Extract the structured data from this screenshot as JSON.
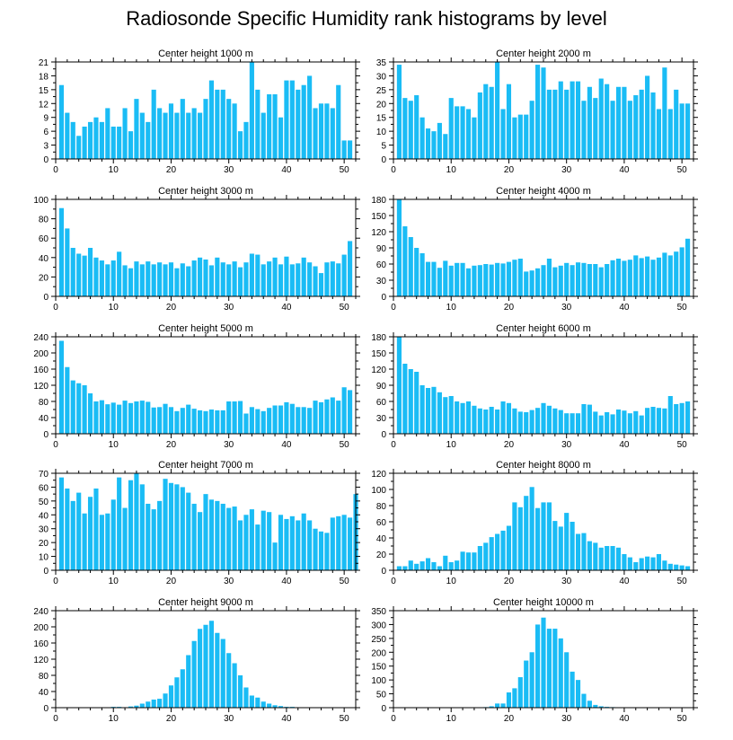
{
  "figure": {
    "title": "Radiosonde Specific Humidity rank histograms by level",
    "bar_color": "#1abcf5",
    "axis_color": "#000000"
  },
  "chart_data": [
    {
      "type": "bar",
      "title": "Center height 1000 m",
      "xlim": [
        0,
        52
      ],
      "xticks": [
        0,
        10,
        20,
        30,
        40,
        50
      ],
      "ylim": [
        0,
        21
      ],
      "yticks": [
        0,
        3,
        6,
        9,
        12,
        15,
        18,
        21
      ],
      "values": [
        16,
        10,
        8,
        5,
        7,
        8,
        9,
        8,
        11,
        7,
        7,
        11,
        6,
        13,
        10,
        8,
        15,
        11,
        10,
        12,
        10,
        13,
        10,
        11,
        10,
        13,
        17,
        15,
        15,
        13,
        12,
        6,
        8,
        21,
        15,
        10,
        14,
        14,
        9,
        17,
        17,
        15,
        16,
        18,
        11,
        12,
        12,
        11,
        16,
        4,
        4
      ]
    },
    {
      "type": "bar",
      "title": "Center height 2000 m",
      "xlim": [
        0,
        52
      ],
      "xticks": [
        0,
        10,
        20,
        30,
        40,
        50
      ],
      "ylim": [
        0,
        35
      ],
      "yticks": [
        0,
        5,
        10,
        15,
        20,
        25,
        30,
        35
      ],
      "values": [
        34,
        22,
        21,
        23,
        15,
        11,
        10,
        13,
        9,
        22,
        19,
        19,
        18,
        15,
        24,
        27,
        26,
        35,
        18,
        27,
        15,
        16,
        16,
        21,
        34,
        33,
        25,
        25,
        28,
        25,
        28,
        28,
        21,
        26,
        22,
        29,
        27,
        21,
        26,
        26,
        21,
        23,
        25,
        30,
        24,
        18,
        33,
        18,
        25,
        20,
        20
      ]
    },
    {
      "type": "bar",
      "title": "Center height 3000 m",
      "xlim": [
        0,
        52
      ],
      "xticks": [
        0,
        10,
        20,
        30,
        40,
        50
      ],
      "ylim": [
        0,
        100
      ],
      "yticks": [
        0,
        20,
        40,
        60,
        80,
        100
      ],
      "values": [
        91,
        70,
        50,
        44,
        42,
        50,
        40,
        37,
        33,
        37,
        46,
        32,
        29,
        36,
        33,
        36,
        33,
        35,
        33,
        35,
        29,
        34,
        31,
        37,
        40,
        38,
        32,
        40,
        35,
        33,
        36,
        30,
        35,
        44,
        43,
        33,
        36,
        40,
        33,
        41,
        33,
        34,
        40,
        35,
        31,
        24,
        35,
        36,
        34,
        43,
        57
      ]
    },
    {
      "type": "bar",
      "title": "Center height 4000 m",
      "xlim": [
        0,
        52
      ],
      "xticks": [
        0,
        10,
        20,
        30,
        40,
        50
      ],
      "ylim": [
        0,
        180
      ],
      "yticks": [
        0,
        30,
        60,
        90,
        120,
        150,
        180
      ],
      "values": [
        180,
        130,
        110,
        90,
        80,
        64,
        64,
        53,
        66,
        57,
        62,
        62,
        52,
        57,
        58,
        60,
        59,
        62,
        61,
        64,
        68,
        70,
        46,
        48,
        52,
        58,
        70,
        54,
        57,
        62,
        58,
        63,
        62,
        60,
        60,
        54,
        60,
        67,
        70,
        66,
        68,
        76,
        71,
        74,
        68,
        72,
        81,
        76,
        83,
        91,
        107
      ]
    },
    {
      "type": "bar",
      "title": "Center height 5000 m",
      "xlim": [
        0,
        52
      ],
      "xticks": [
        0,
        10,
        20,
        30,
        40,
        50
      ],
      "ylim": [
        0,
        240
      ],
      "yticks": [
        0,
        40,
        80,
        120,
        160,
        200,
        240
      ],
      "values": [
        230,
        165,
        132,
        125,
        120,
        100,
        80,
        83,
        73,
        77,
        72,
        82,
        76,
        80,
        82,
        79,
        65,
        66,
        74,
        66,
        56,
        64,
        72,
        62,
        58,
        56,
        60,
        58,
        58,
        80,
        80,
        81,
        50,
        66,
        61,
        56,
        64,
        70,
        70,
        78,
        74,
        66,
        66,
        64,
        82,
        78,
        85,
        90,
        82,
        115,
        108
      ]
    },
    {
      "type": "bar",
      "title": "Center height 6000 m",
      "xlim": [
        0,
        52
      ],
      "xticks": [
        0,
        10,
        20,
        30,
        40,
        50
      ],
      "ylim": [
        0,
        180
      ],
      "yticks": [
        0,
        30,
        60,
        90,
        120,
        150,
        180
      ],
      "values": [
        180,
        130,
        120,
        115,
        90,
        85,
        87,
        77,
        68,
        70,
        60,
        57,
        60,
        52,
        47,
        45,
        50,
        45,
        60,
        57,
        47,
        41,
        40,
        44,
        48,
        57,
        52,
        47,
        44,
        38,
        38,
        38,
        55,
        54,
        41,
        34,
        40,
        36,
        45,
        43,
        38,
        42,
        34,
        48,
        50,
        48,
        47,
        70,
        55,
        57,
        60
      ]
    },
    {
      "type": "bar",
      "title": "Center height 7000 m",
      "xlim": [
        0,
        52
      ],
      "xticks": [
        0,
        10,
        20,
        30,
        40,
        50
      ],
      "ylim": [
        0,
        70
      ],
      "yticks": [
        0,
        10,
        20,
        30,
        40,
        50,
        60,
        70
      ],
      "values": [
        67,
        59,
        50,
        56,
        41,
        53,
        59,
        40,
        41,
        51,
        67,
        45,
        65,
        70,
        62,
        48,
        44,
        50,
        66,
        63,
        62,
        60,
        56,
        48,
        42,
        55,
        51,
        50,
        48,
        45,
        46,
        36,
        40,
        44,
        33,
        43,
        42,
        20,
        40,
        37,
        39,
        36,
        41,
        36,
        30,
        28,
        27,
        38,
        39,
        40,
        38,
        55
      ]
    },
    {
      "type": "bar",
      "title": "Center height 8000 m",
      "xlim": [
        0,
        52
      ],
      "xticks": [
        0,
        10,
        20,
        30,
        40,
        50
      ],
      "ylim": [
        0,
        120
      ],
      "yticks": [
        0,
        20,
        40,
        60,
        80,
        100,
        120
      ],
      "values": [
        5,
        5,
        12,
        8,
        11,
        15,
        10,
        5,
        18,
        10,
        12,
        23,
        22,
        22,
        30,
        34,
        41,
        45,
        49,
        55,
        84,
        78,
        92,
        103,
        77,
        84,
        84,
        61,
        54,
        71,
        60,
        45,
        46,
        36,
        34,
        28,
        30,
        30,
        28,
        20,
        16,
        10,
        15,
        17,
        16,
        20,
        12,
        8,
        7,
        6,
        5
      ]
    },
    {
      "type": "bar",
      "title": "Center height 9000 m",
      "xlim": [
        0,
        52
      ],
      "xticks": [
        0,
        10,
        20,
        30,
        40,
        50
      ],
      "ylim": [
        0,
        240
      ],
      "yticks": [
        0,
        40,
        80,
        120,
        160,
        200,
        240
      ],
      "values": [
        0,
        0,
        0,
        0,
        0,
        0,
        0,
        0,
        1,
        2,
        2,
        1,
        3,
        5,
        10,
        15,
        20,
        22,
        35,
        55,
        75,
        95,
        130,
        165,
        195,
        205,
        215,
        185,
        170,
        135,
        110,
        80,
        50,
        30,
        25,
        15,
        10,
        6,
        4,
        2,
        2,
        1,
        0,
        0,
        0,
        0,
        0,
        0,
        0,
        0,
        0
      ]
    },
    {
      "type": "bar",
      "title": "Center height 10000 m",
      "xlim": [
        0,
        52
      ],
      "xticks": [
        0,
        10,
        20,
        30,
        40,
        50
      ],
      "ylim": [
        0,
        350
      ],
      "yticks": [
        0,
        50,
        100,
        150,
        200,
        250,
        300,
        350
      ],
      "values": [
        0,
        0,
        0,
        0,
        0,
        0,
        0,
        0,
        0,
        0,
        0,
        0,
        0,
        0,
        0,
        2,
        5,
        15,
        15,
        55,
        70,
        110,
        170,
        200,
        300,
        325,
        285,
        285,
        250,
        200,
        130,
        100,
        50,
        25,
        10,
        5,
        3,
        2,
        1,
        1,
        0,
        0,
        0,
        0,
        0,
        0,
        0,
        0,
        0,
        0,
        0
      ]
    }
  ]
}
